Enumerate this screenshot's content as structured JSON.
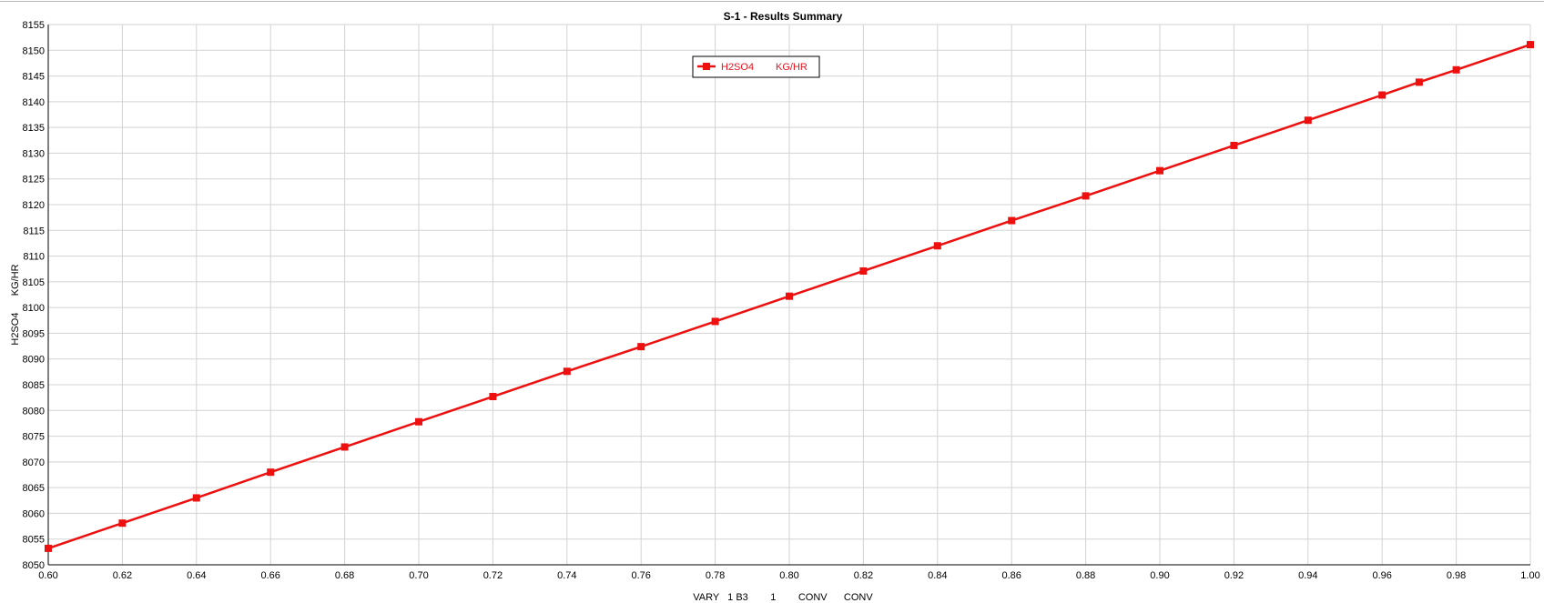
{
  "colors": {
    "series": "#ee0f0f",
    "grid": "#d3d3d3",
    "axis": "#000000"
  },
  "chart_data": {
    "type": "line",
    "title": "S-1 - Results Summary",
    "xlabel": "VARY   1 B3        1        CONV      CONV",
    "ylabel": "H2SO4      KG/HR",
    "xlim": [
      0.6,
      1.0
    ],
    "ylim": [
      8050,
      8155
    ],
    "xticks": [
      "0.60",
      "0.62",
      "0.64",
      "0.66",
      "0.68",
      "0.70",
      "0.72",
      "0.74",
      "0.76",
      "0.78",
      "0.80",
      "0.82",
      "0.84",
      "0.86",
      "0.88",
      "0.90",
      "0.92",
      "0.94",
      "0.96",
      "0.98",
      "1.00"
    ],
    "yticks": [
      "8050",
      "8055",
      "8060",
      "8065",
      "8070",
      "8075",
      "8080",
      "8085",
      "8090",
      "8095",
      "8100",
      "8105",
      "8110",
      "8115",
      "8120",
      "8125",
      "8130",
      "8135",
      "8140",
      "8145",
      "8150",
      "8155"
    ],
    "grid": true,
    "legend": {
      "position": "top-center",
      "entries": [
        "H2SO4",
        "KG/HR"
      ]
    },
    "series": [
      {
        "name": "H2SO4",
        "unit": "KG/HR",
        "marker": "square",
        "x": [
          0.6,
          0.62,
          0.64,
          0.66,
          0.68,
          0.7,
          0.72,
          0.74,
          0.76,
          0.78,
          0.8,
          0.82,
          0.84,
          0.86,
          0.88,
          0.9,
          0.92,
          0.94,
          0.96,
          0.97,
          0.98,
          1.0
        ],
        "y": [
          8053.2,
          8058.1,
          8063.0,
          8068.0,
          8072.9,
          8077.8,
          8082.7,
          8087.6,
          8092.4,
          8097.3,
          8102.2,
          8107.1,
          8112.0,
          8116.9,
          8121.7,
          8126.6,
          8131.5,
          8136.4,
          8141.3,
          8143.8,
          8146.2,
          8151.1
        ]
      }
    ]
  }
}
